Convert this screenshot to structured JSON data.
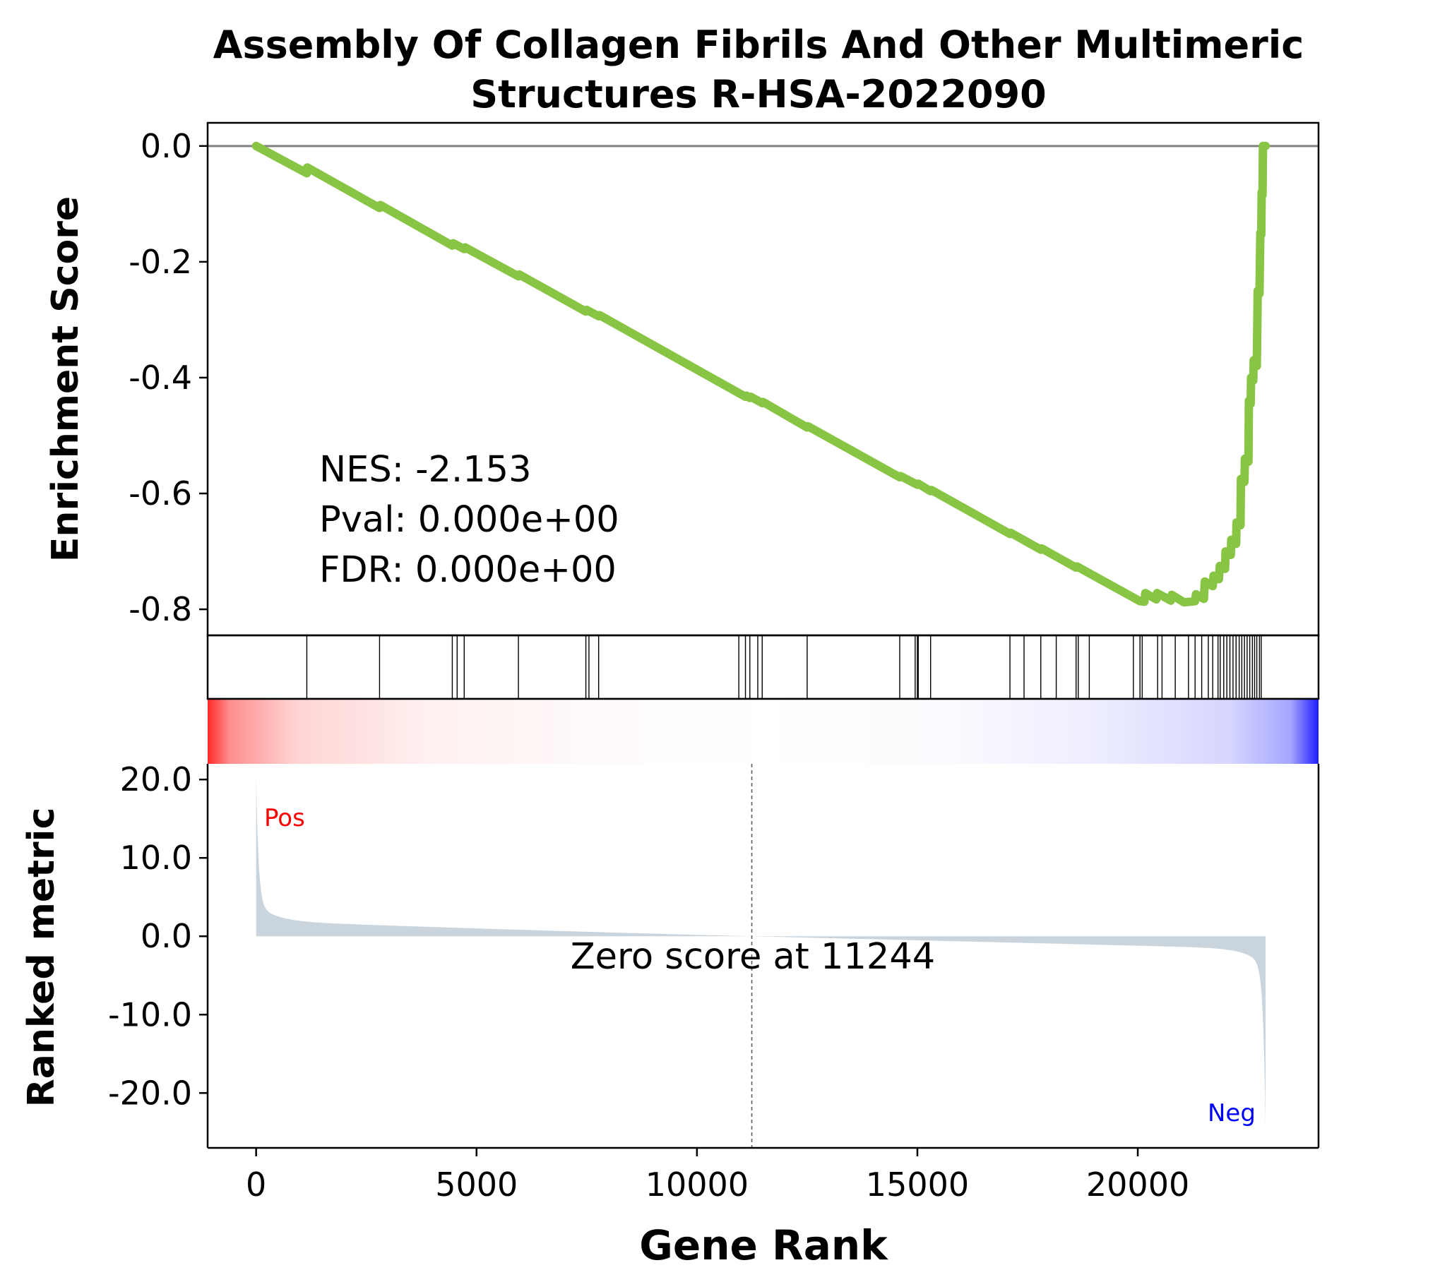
{
  "chart_data": {
    "type": "line",
    "title_lines": [
      "Assembly Of Collagen Fibrils And Other Multimeric",
      "Structures R-HSA-2022090"
    ],
    "xlabel": "Gene Rank",
    "ylabel_top": "Enrichment Score",
    "ylabel_bottom": "Ranked metric",
    "xlim": [
      -1100,
      24100
    ],
    "x_ticks": [
      0,
      5000,
      10000,
      15000,
      20000
    ],
    "x_tick_labels": [
      "0",
      "5000",
      "10000",
      "15000",
      "20000"
    ],
    "es": {
      "ylim": [
        -0.845,
        0.04
      ],
      "y_ticks": [
        0.0,
        -0.2,
        -0.4,
        -0.6,
        -0.8
      ],
      "y_tick_labels": [
        "0.0",
        "-0.2",
        "-0.4",
        "-0.6",
        "-0.8"
      ],
      "color": "#88c544",
      "curve": [
        [
          0,
          0.0
        ],
        [
          1150,
          -0.047
        ],
        [
          1160,
          -0.037
        ],
        [
          2800,
          -0.107
        ],
        [
          2820,
          -0.102
        ],
        [
          4450,
          -0.172
        ],
        [
          4470,
          -0.168
        ],
        [
          4720,
          -0.178
        ],
        [
          4740,
          -0.175
        ],
        [
          5950,
          -0.225
        ],
        [
          5970,
          -0.222
        ],
        [
          7480,
          -0.286
        ],
        [
          7500,
          -0.283
        ],
        [
          7770,
          -0.294
        ],
        [
          7790,
          -0.292
        ],
        [
          11100,
          -0.433
        ],
        [
          11120,
          -0.431
        ],
        [
          11200,
          -0.435
        ],
        [
          11220,
          -0.433
        ],
        [
          11480,
          -0.444
        ],
        [
          11500,
          -0.442
        ],
        [
          12500,
          -0.486
        ],
        [
          12520,
          -0.484
        ],
        [
          14600,
          -0.572
        ],
        [
          14620,
          -0.57
        ],
        [
          15000,
          -0.585
        ],
        [
          15020,
          -0.583
        ],
        [
          15300,
          -0.596
        ],
        [
          15320,
          -0.594
        ],
        [
          17100,
          -0.67
        ],
        [
          17120,
          -0.668
        ],
        [
          17800,
          -0.697
        ],
        [
          17820,
          -0.695
        ],
        [
          18600,
          -0.728
        ],
        [
          18620,
          -0.726
        ],
        [
          20050,
          -0.786
        ],
        [
          20150,
          -0.787
        ],
        [
          20170,
          -0.772
        ],
        [
          20420,
          -0.783
        ],
        [
          20440,
          -0.772
        ],
        [
          20750,
          -0.785
        ],
        [
          20770,
          -0.775
        ],
        [
          21050,
          -0.788
        ],
        [
          21300,
          -0.786
        ],
        [
          21320,
          -0.774
        ],
        [
          21500,
          -0.782
        ],
        [
          21520,
          -0.752
        ],
        [
          21700,
          -0.76
        ],
        [
          21720,
          -0.742
        ],
        [
          21840,
          -0.748
        ],
        [
          21860,
          -0.725
        ],
        [
          21980,
          -0.73
        ],
        [
          21990,
          -0.7
        ],
        [
          22110,
          -0.706
        ],
        [
          22120,
          -0.68
        ],
        [
          22230,
          -0.687
        ],
        [
          22240,
          -0.65
        ],
        [
          22330,
          -0.655
        ],
        [
          22340,
          -0.575
        ],
        [
          22420,
          -0.58
        ],
        [
          22430,
          -0.54
        ],
        [
          22510,
          -0.545
        ],
        [
          22520,
          -0.44
        ],
        [
          22560,
          -0.445
        ],
        [
          22570,
          -0.4
        ],
        [
          22620,
          -0.405
        ],
        [
          22630,
          -0.37
        ],
        [
          22690,
          -0.375
        ],
        [
          22700,
          -0.38
        ],
        [
          22720,
          -0.25
        ],
        [
          22760,
          -0.255
        ],
        [
          22780,
          -0.15
        ],
        [
          22800,
          -0.153
        ],
        [
          22810,
          -0.08
        ],
        [
          22830,
          -0.085
        ],
        [
          22840,
          0.0
        ],
        [
          22900,
          0.0
        ]
      ]
    },
    "hits": [
      1150,
      2800,
      4450,
      4560,
      4720,
      5950,
      7480,
      7550,
      7770,
      10950,
      11100,
      11200,
      11380,
      11480,
      12500,
      14600,
      14950,
      15000,
      15020,
      15300,
      17100,
      17420,
      17800,
      18150,
      18600,
      18650,
      18900,
      19900,
      20050,
      20100,
      20450,
      20550,
      20850,
      21150,
      21300,
      21450,
      21600,
      21700,
      21820,
      21870,
      21950,
      22020,
      22090,
      22160,
      22230,
      22300,
      22360,
      22420,
      22480,
      22540,
      22600,
      22650,
      22700,
      22760,
      22800
    ],
    "ranked": {
      "ylim": [
        -27,
        22
      ],
      "y_ticks": [
        20.0,
        10.0,
        0.0,
        -10.0,
        -20.0
      ],
      "y_tick_labels": [
        "20.0",
        "10.0",
        "0.0",
        "-10.0",
        "-20.0"
      ],
      "fill_color": "#c9d4dd",
      "x_max": 22900,
      "zero_cross": 11244,
      "pos_label": "Pos",
      "neg_label": "Neg",
      "zero_label": "Zero score at 11244"
    },
    "stats": {
      "nes": "NES: -2.153",
      "pval": "Pval: 0.000e+00",
      "fdr": "FDR: 0.000e+00"
    }
  }
}
